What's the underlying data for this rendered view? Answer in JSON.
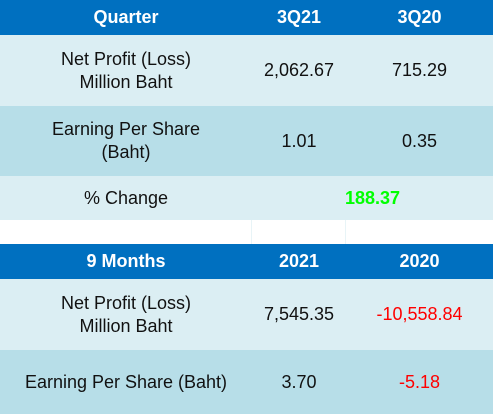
{
  "quarter": {
    "header": [
      "Quarter",
      "3Q21",
      "3Q20"
    ],
    "rows": [
      {
        "label": [
          "Net Profit (Loss)",
          "Million Baht"
        ],
        "v1": "2,062.67",
        "v2": "715.29"
      },
      {
        "label": [
          "Earning Per Share",
          "(Baht)"
        ],
        "v1": "1.01",
        "v2": "0.35"
      }
    ],
    "change": {
      "label": "% Change",
      "value": "188.37"
    }
  },
  "nine_months": {
    "header": [
      "9 Months",
      "2021",
      "2020"
    ],
    "rows": [
      {
        "label": [
          "Net Profit (Loss)",
          "Million Baht"
        ],
        "v1": "7,545.35",
        "v2": "-10,558.84"
      },
      {
        "label": [
          "Earning Per Share (Baht)"
        ],
        "v1": "3.70",
        "v2": "-5.18"
      }
    ]
  },
  "colors": {
    "header_bg": "#0070c0",
    "row_light": "#dbeef3",
    "row_mid": "#b7dee8",
    "negative": "#ff0000",
    "positive_change": "#00ff00"
  }
}
